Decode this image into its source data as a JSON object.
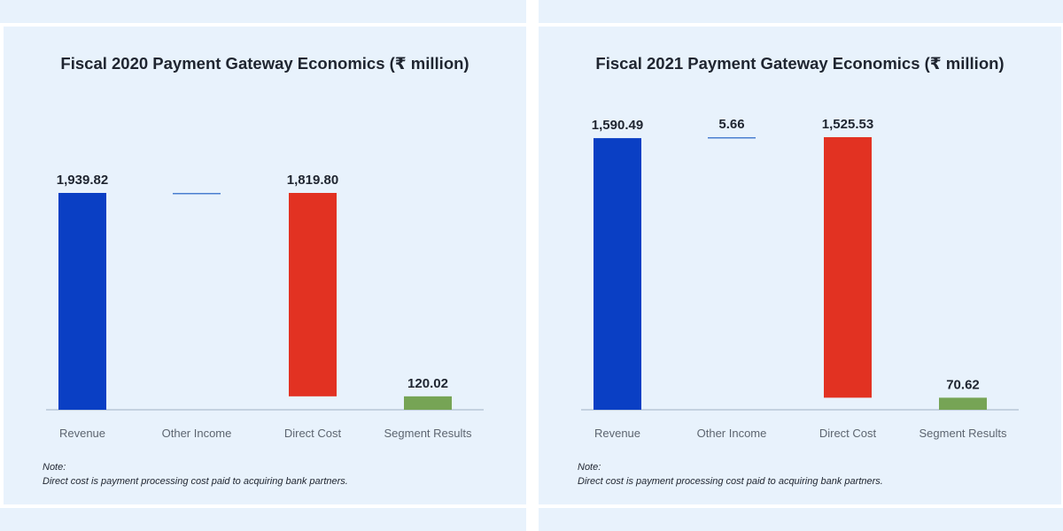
{
  "chart_data": [
    {
      "type": "bar",
      "title": "Fiscal 2020 Payment Gateway Economics (₹ million)",
      "categories": [
        "Revenue",
        "Other Income",
        "Direct Cost",
        "Segment Results"
      ],
      "values": [
        1939.82,
        0,
        1819.8,
        120.02
      ],
      "value_labels": [
        "1,939.82",
        "",
        "1,819.80",
        "120.02"
      ],
      "colors": [
        "#0a3fc4",
        "#4a7fd0",
        "#e23222",
        "#76a455"
      ],
      "ylim": [
        0,
        1939.82
      ],
      "note_heading": "Note:",
      "note_text": "Direct cost is payment processing cost paid to acquiring bank partners."
    },
    {
      "type": "bar",
      "title": "Fiscal 2021 Payment Gateway Economics (₹ million)",
      "categories": [
        "Revenue",
        "Other Income",
        "Direct Cost",
        "Segment Results"
      ],
      "values": [
        1590.49,
        5.66,
        1525.53,
        70.62
      ],
      "value_labels": [
        "1,590.49",
        "5.66",
        "1,525.53",
        "70.62"
      ],
      "colors": [
        "#0a3fc4",
        "#4a7fd0",
        "#e23222",
        "#76a455"
      ],
      "ylim": [
        0,
        1596.15
      ],
      "note_heading": "Note:",
      "note_text": "Direct cost is payment processing cost paid to acquiring bank partners."
    }
  ]
}
